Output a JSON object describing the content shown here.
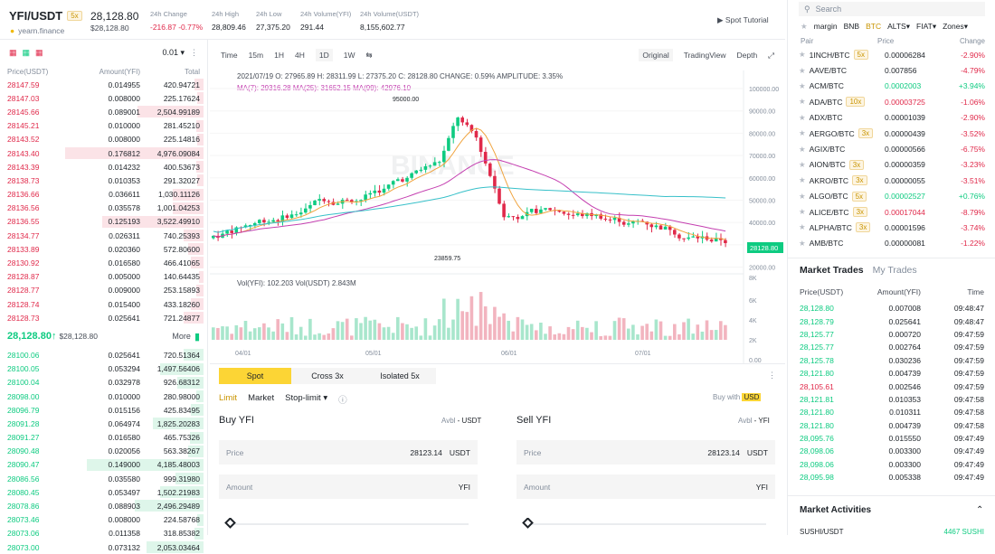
{
  "header": {
    "symbol": "YFI/USDT",
    "leverage": "5x",
    "project": "yearn.finance",
    "last_price": "28,128.80",
    "last_price_usd": "$28,128.80",
    "stats": [
      {
        "label": "24h Change",
        "value": "-216.87 -0.77%"
      },
      {
        "label": "24h High",
        "value": "28,809.46"
      },
      {
        "label": "24h Low",
        "value": "27,375.20"
      },
      {
        "label": "24h Volume(YFI)",
        "value": "291.44"
      },
      {
        "label": "24h Volume(USDT)",
        "value": "8,155,602.77"
      }
    ],
    "spot_tutorial": "Spot Tutorial"
  },
  "orderbook": {
    "precision": "0.01",
    "headers": [
      "Price(USDT)",
      "Amount(YFI)",
      "Total"
    ],
    "asks": [
      [
        "28147.59",
        "0.014955",
        "420.94721"
      ],
      [
        "28147.03",
        "0.008000",
        "225.17624"
      ],
      [
        "28145.66",
        "0.089001",
        "2,504.99189"
      ],
      [
        "28145.21",
        "0.010000",
        "281.45210"
      ],
      [
        "28143.52",
        "0.008000",
        "225.14816"
      ],
      [
        "28143.40",
        "0.176812",
        "4,976.09084"
      ],
      [
        "28143.39",
        "0.014232",
        "400.53673"
      ],
      [
        "28138.73",
        "0.010353",
        "291.32027"
      ],
      [
        "28136.66",
        "0.036611",
        "1,030.11126"
      ],
      [
        "28136.56",
        "0.035578",
        "1,001.04253"
      ],
      [
        "28136.55",
        "0.125193",
        "3,522.49910"
      ],
      [
        "28134.77",
        "0.026311",
        "740.25393"
      ],
      [
        "28133.89",
        "0.020360",
        "572.80600"
      ],
      [
        "28130.92",
        "0.016580",
        "466.41065"
      ],
      [
        "28128.87",
        "0.005000",
        "140.64435"
      ],
      [
        "28128.77",
        "0.009000",
        "253.15893"
      ],
      [
        "28128.74",
        "0.015400",
        "433.18260"
      ],
      [
        "28128.73",
        "0.025641",
        "721.24877"
      ]
    ],
    "ask_depth": [
      0.06,
      0.04,
      0.43,
      0.05,
      0.04,
      0.9,
      0.05,
      0.04,
      0.2,
      0.2,
      0.66,
      0.13,
      0.1,
      0.08,
      0.03,
      0.05,
      0.08,
      0.13
    ],
    "mid_price": "28,128.80",
    "mid_usd": "$28,128.80",
    "more": "More",
    "bids": [
      [
        "28100.06",
        "0.025641",
        "720.51364"
      ],
      [
        "28100.05",
        "0.053294",
        "1,497.56406"
      ],
      [
        "28100.04",
        "0.032978",
        "926.68312"
      ],
      [
        "28098.00",
        "0.010000",
        "280.98000"
      ],
      [
        "28096.79",
        "0.015156",
        "425.83495"
      ],
      [
        "28091.28",
        "0.064974",
        "1,825.20283"
      ],
      [
        "28091.27",
        "0.016580",
        "465.75326"
      ],
      [
        "28090.48",
        "0.020056",
        "563.38267"
      ],
      [
        "28090.47",
        "0.149000",
        "4,185.48003"
      ],
      [
        "28086.56",
        "0.035580",
        "999.31980"
      ],
      [
        "28080.45",
        "0.053497",
        "1,502.21983"
      ],
      [
        "28078.86",
        "0.088903",
        "2,496.29489"
      ],
      [
        "28073.46",
        "0.008000",
        "224.58768"
      ],
      [
        "28073.06",
        "0.011358",
        "318.85382"
      ],
      [
        "28073.00",
        "0.073132",
        "2,053.03464"
      ]
    ],
    "bid_depth": [
      0.13,
      0.28,
      0.17,
      0.05,
      0.08,
      0.33,
      0.09,
      0.1,
      0.76,
      0.18,
      0.28,
      0.45,
      0.04,
      0.06,
      0.37
    ]
  },
  "chart": {
    "intervals": [
      "Time",
      "15m",
      "1H",
      "4H",
      "1D",
      "1W"
    ],
    "selected": "1D",
    "views": [
      "Original",
      "TradingView",
      "Depth"
    ],
    "info_line": "2021/07/19 O: 27965.89 H: 28311.99 L: 27375.20 C: 28128.80 CHANGE: 0.59% AMPLITUDE: 3.35%",
    "ma_line": "MA(7): 29316.28 MA(25): 31652.15 MA(99): 42976.10",
    "vol_line": "Vol(YFI): 102.203 Vol(USDT) 2.843M",
    "y_ticks": [
      "100000.00",
      "90000.00",
      "80000.00",
      "70000.00",
      "60000.00",
      "50000.00",
      "40000.00",
      "30000.00",
      "20000.00"
    ],
    "vol_ticks": [
      "6K",
      "4K",
      "2K",
      "0.00"
    ],
    "vol_top": "8K",
    "x_ticks": [
      "04/01",
      "05/01",
      "06/01",
      "07/01"
    ],
    "high_label": "95000.00",
    "low_label": "23859.75",
    "price_tag": "28128.80",
    "watermark": "BINANCE",
    "colors": {
      "up": "#0ecb81",
      "down": "#e0294a",
      "ma7": "#f0a33d",
      "ma25": "#c43fb0",
      "ma99": "#37c0c9"
    }
  },
  "form": {
    "tabs": [
      "Spot",
      "Cross 3x",
      "Isolated 5x"
    ],
    "order_types": [
      "Limit",
      "Market",
      "Stop-limit"
    ],
    "buy_with": "Buy with",
    "currency": "USD",
    "buy": {
      "title": "Buy YFI",
      "avbl": "Avbl",
      "avbl_val": "- USDT",
      "price_label": "Price",
      "price": "28123.14",
      "price_unit": "USDT",
      "amount_label": "Amount",
      "amount_unit": "YFI"
    },
    "sell": {
      "title": "Sell YFI",
      "avbl": "Avbl",
      "avbl_val": "- YFI",
      "price_label": "Price",
      "price": "28123.14",
      "price_unit": "USDT",
      "amount_label": "Amount",
      "amount_unit": "YFI"
    }
  },
  "pairs": {
    "search_placeholder": "Search",
    "filters": [
      "margin",
      "BNB",
      "BTC",
      "ALTS",
      "FIAT",
      "Zones"
    ],
    "active_filter": "BTC",
    "headers": [
      "Pair",
      "Price",
      "Change"
    ],
    "list": [
      {
        "pair": "1INCH/BTC",
        "lev": "5x",
        "price": "0.00006284",
        "change": "-2.90%",
        "dir": "down"
      },
      {
        "pair": "AAVE/BTC",
        "lev": "",
        "price": "0.007856",
        "change": "-4.79%",
        "dir": "down"
      },
      {
        "pair": "ACM/BTC",
        "lev": "",
        "price": "0.0002003",
        "change": "+3.94%",
        "dir": "up"
      },
      {
        "pair": "ADA/BTC",
        "lev": "10x",
        "price": "0.00003725",
        "change": "-1.06%",
        "dir": "down"
      },
      {
        "pair": "ADX/BTC",
        "lev": "",
        "price": "0.00001039",
        "change": "-2.90%",
        "dir": "down"
      },
      {
        "pair": "AERGO/BTC",
        "lev": "3x",
        "price": "0.00000439",
        "change": "-3.52%",
        "dir": "down"
      },
      {
        "pair": "AGIX/BTC",
        "lev": "",
        "price": "0.00000566",
        "change": "-6.75%",
        "dir": "down"
      },
      {
        "pair": "AION/BTC",
        "lev": "3x",
        "price": "0.00000359",
        "change": "-3.23%",
        "dir": "down"
      },
      {
        "pair": "AKRO/BTC",
        "lev": "3x",
        "price": "0.00000055",
        "change": "-3.51%",
        "dir": "down"
      },
      {
        "pair": "ALGO/BTC",
        "lev": "5x",
        "price": "0.00002527",
        "change": "+0.76%",
        "dir": "up"
      },
      {
        "pair": "ALICE/BTC",
        "lev": "3x",
        "price": "0.00017044",
        "change": "-8.79%",
        "dir": "down"
      },
      {
        "pair": "ALPHA/BTC",
        "lev": "3x",
        "price": "0.00001596",
        "change": "-3.74%",
        "dir": "down"
      },
      {
        "pair": "AMB/BTC",
        "lev": "",
        "price": "0.00000081",
        "change": "-1.22%",
        "dir": "down"
      }
    ]
  },
  "trades": {
    "tabs": [
      "Market Trades",
      "My Trades"
    ],
    "headers": [
      "Price(USDT)",
      "Amount(YFI)",
      "Time"
    ],
    "list": [
      [
        "28,128.80",
        "0.007008",
        "09:48:47",
        "up"
      ],
      [
        "28,128.79",
        "0.025641",
        "09:48:47",
        "up"
      ],
      [
        "28,125.77",
        "0.000720",
        "09:47:59",
        "up"
      ],
      [
        "28,125.77",
        "0.002764",
        "09:47:59",
        "up"
      ],
      [
        "28,125.78",
        "0.030236",
        "09:47:59",
        "up"
      ],
      [
        "28,121.80",
        "0.004739",
        "09:47:59",
        "up"
      ],
      [
        "28,105.61",
        "0.002546",
        "09:47:59",
        "down"
      ],
      [
        "28,121.81",
        "0.010353",
        "09:47:58",
        "up"
      ],
      [
        "28,121.80",
        "0.010311",
        "09:47:58",
        "up"
      ],
      [
        "28,121.80",
        "0.004739",
        "09:47:58",
        "up"
      ],
      [
        "28,095.76",
        "0.015550",
        "09:47:49",
        "up"
      ],
      [
        "28,098.06",
        "0.003300",
        "09:47:49",
        "up"
      ],
      [
        "28,098.06",
        "0.003300",
        "09:47:49",
        "up"
      ],
      [
        "28,095.98",
        "0.005338",
        "09:47:49",
        "up"
      ]
    ]
  },
  "activities": {
    "title": "Market Activities",
    "row": "SUSHI/USDT",
    "row_val": "4467 SUSHI"
  }
}
